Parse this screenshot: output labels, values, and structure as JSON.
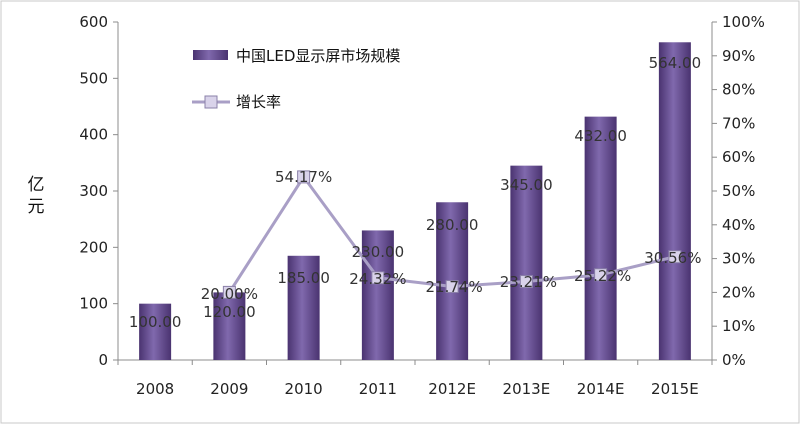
{
  "chart_data": {
    "type": "bar",
    "title": "",
    "ylabel": "亿元",
    "y2label": "",
    "categories": [
      "2008",
      "2009",
      "2010",
      "2011",
      "2012E",
      "2013E",
      "2014E",
      "2015E"
    ],
    "series": [
      {
        "name": "中国LED显示屏市场规模",
        "type": "bar",
        "axis": "left",
        "values": [
          100.0,
          120.0,
          185.0,
          230.0,
          280.0,
          345.0,
          432.0,
          564.0
        ],
        "labels": [
          "100.00",
          "120.00",
          "185.00",
          "230.00",
          "280.00",
          "345.00",
          "432.00",
          "564.00"
        ],
        "color": "#6b4f97"
      },
      {
        "name": "增长率",
        "type": "line",
        "axis": "right",
        "values": [
          null,
          20.0,
          54.17,
          24.32,
          21.74,
          23.21,
          25.22,
          30.56
        ],
        "labels": [
          "",
          "20.00%",
          "54.17%",
          "24.32%",
          "21.74%",
          "23.21%",
          "25.22%",
          "30.56%"
        ],
        "color": "#a99fc6"
      }
    ],
    "ylim": [
      0,
      600
    ],
    "yticks": [
      "0",
      "100",
      "200",
      "300",
      "400",
      "500",
      "600"
    ],
    "y2lim": [
      0,
      100
    ],
    "y2ticks": [
      "0%",
      "10%",
      "20%",
      "30%",
      "40%",
      "50%",
      "60%",
      "70%",
      "80%",
      "90%",
      "100%"
    ],
    "legend_position": "top-left inside plot"
  }
}
